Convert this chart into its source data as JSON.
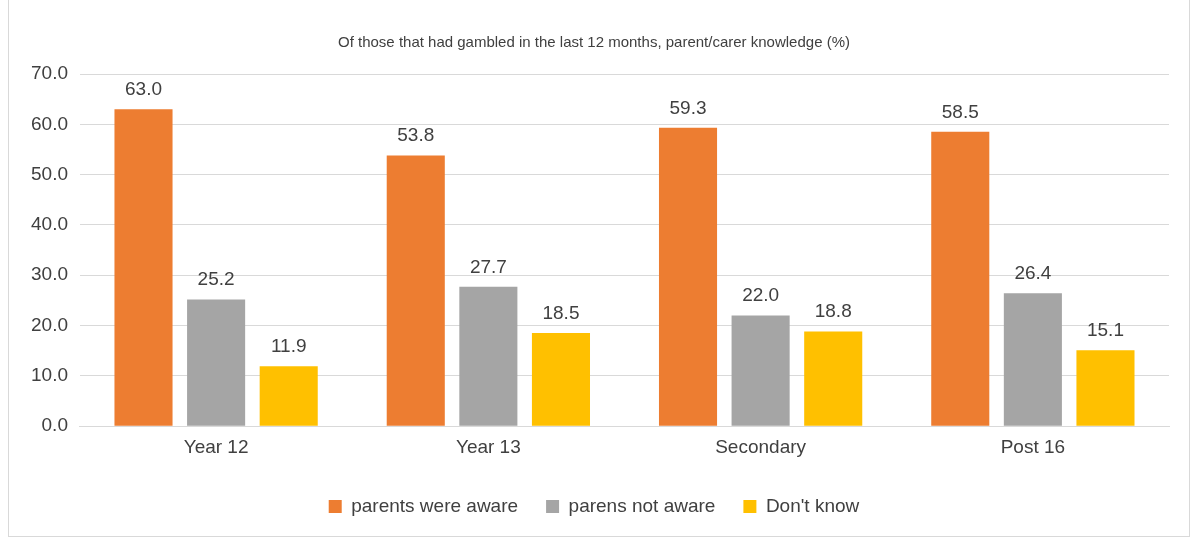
{
  "chart_data": {
    "type": "bar",
    "title": "Of those that had gambled in the last 12 months, parent/carer knowledge (%)",
    "categories": [
      "Year 12",
      "Year 13",
      "Secondary",
      "Post 16"
    ],
    "series": [
      {
        "name": "parents were aware",
        "color": "#ed7d31",
        "values": [
          63.0,
          53.8,
          59.3,
          58.5
        ],
        "value_labels": [
          "63.0",
          "53.8",
          "59.3",
          "58.5"
        ]
      },
      {
        "name": "parens not aware",
        "color": "#a5a5a5",
        "values": [
          25.2,
          27.7,
          22.0,
          26.4
        ],
        "value_labels": [
          "25.2",
          "27.7",
          "22.0",
          "26.4"
        ]
      },
      {
        "name": "Don't know",
        "color": "#ffc000",
        "values": [
          11.9,
          18.5,
          18.8,
          15.1
        ],
        "value_labels": [
          "11.9",
          "18.5",
          "18.8",
          "15.1"
        ]
      }
    ],
    "ylim": [
      0,
      70
    ],
    "yticks": [
      {
        "value": 0,
        "label": "0.0"
      },
      {
        "value": 10,
        "label": "10.0"
      },
      {
        "value": 20,
        "label": "20.0"
      },
      {
        "value": 30,
        "label": "30.0"
      },
      {
        "value": 40,
        "label": "40.0"
      },
      {
        "value": 50,
        "label": "50.0"
      },
      {
        "value": 60,
        "label": "60.0"
      },
      {
        "value": 70,
        "label": "70.0"
      }
    ],
    "grid": "y",
    "legend": "bottom"
  }
}
